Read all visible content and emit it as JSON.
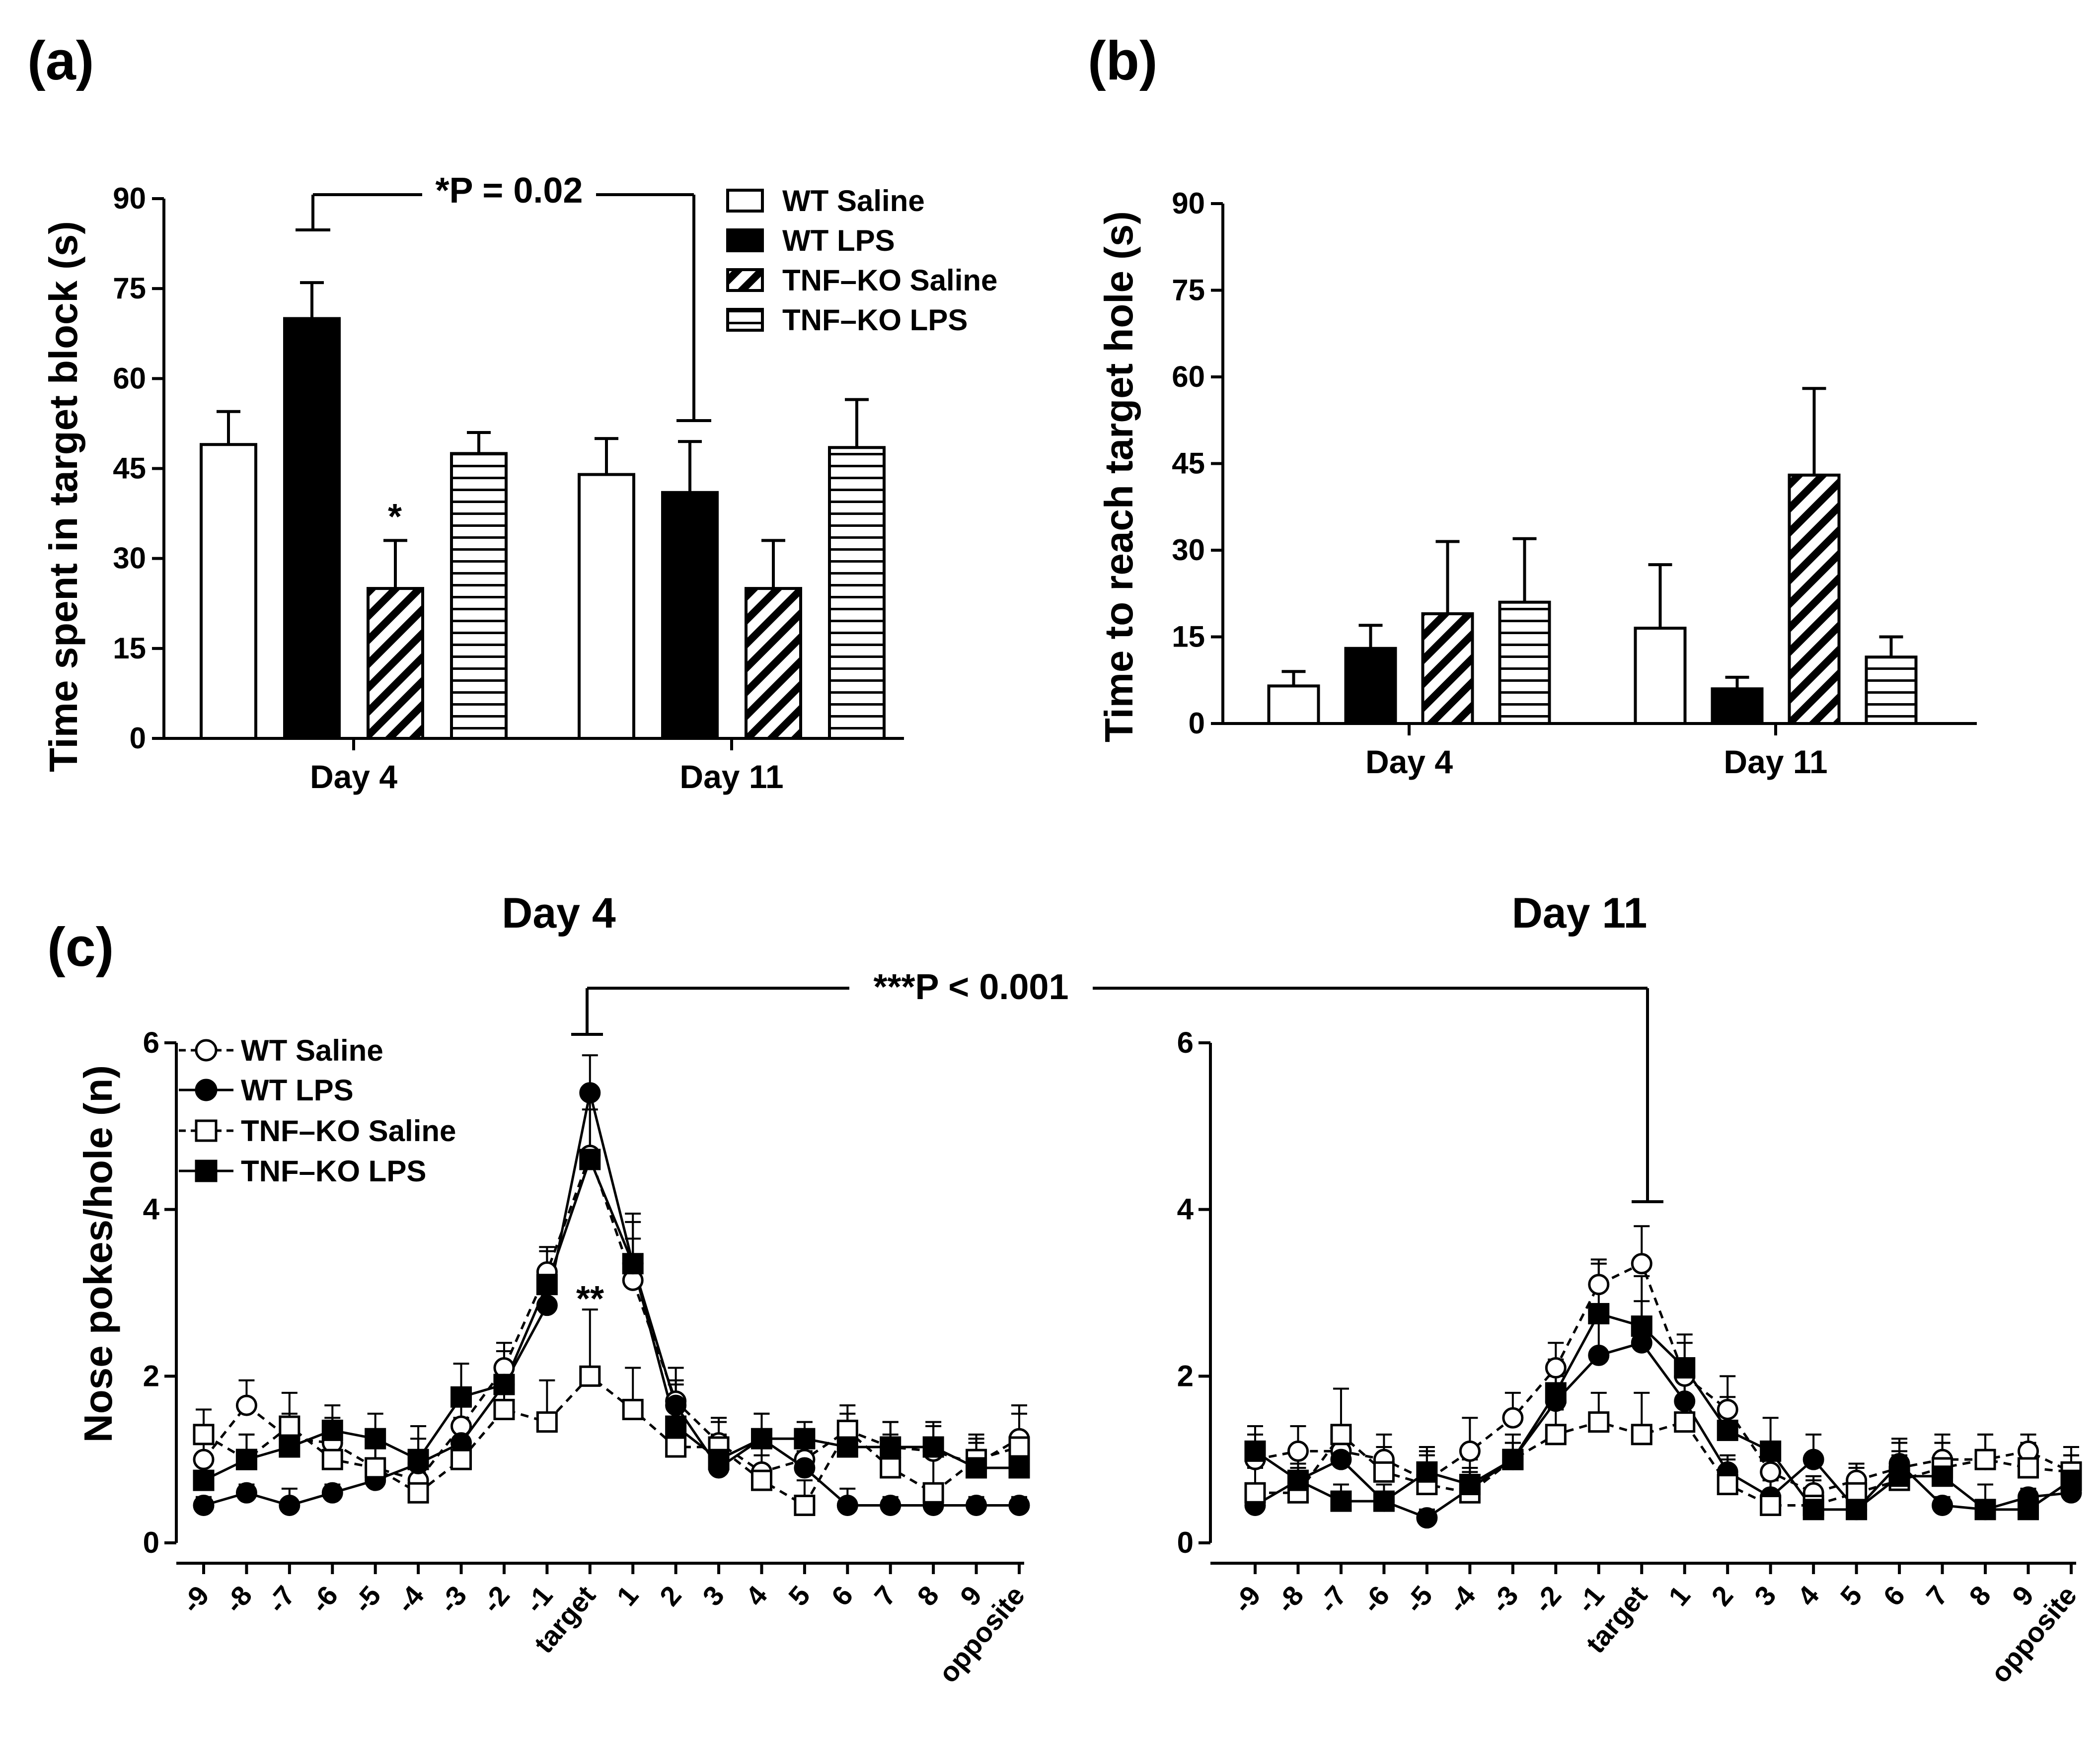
{
  "panels": {
    "a": {
      "label": "(a)",
      "ylabel": "Time spent in target block  (s)",
      "significance_text": "*P = 0.02",
      "star_annotation": "*"
    },
    "b": {
      "label": "(b)",
      "ylabel": "Time to reach target hole (s)"
    },
    "c": {
      "label": "(c)",
      "ylabel": "Nose pokes/hole (n)",
      "day4_title": "Day 4",
      "day11_title": "Day 11",
      "significance_text": "***P < 0.001",
      "star_annotation": "**"
    }
  },
  "legend_bar": [
    "WT Saline",
    "WT LPS",
    "TNF–KO Saline",
    "TNF–KO LPS"
  ],
  "legend_line": [
    "WT Saline",
    "WT LPS",
    "TNF–KO Saline",
    "TNF–KO LPS"
  ],
  "chart_data": [
    {
      "id": "a",
      "type": "bar",
      "title": "",
      "xlabel": "",
      "ylabel": "Time spent in target block  (s)",
      "ylim": [
        0,
        90
      ],
      "yticks": [
        0,
        15,
        30,
        45,
        60,
        75,
        90
      ],
      "categories": [
        "Day 4",
        "Day 11"
      ],
      "series": [
        {
          "name": "WT Saline",
          "values": [
            49,
            44
          ],
          "errors": [
            5.5,
            6
          ]
        },
        {
          "name": "WT LPS",
          "values": [
            70,
            41
          ],
          "errors": [
            6,
            8.5
          ]
        },
        {
          "name": "TNF–KO Saline",
          "values": [
            25,
            25
          ],
          "errors": [
            8,
            8
          ]
        },
        {
          "name": "TNF–KO LPS",
          "values": [
            47.5,
            48.5
          ],
          "errors": [
            3.5,
            8
          ]
        }
      ],
      "annotations": [
        {
          "text": "*P = 0.02",
          "between": [
            "Day 4 WT LPS",
            "Day 11 WT LPS"
          ]
        },
        {
          "text": "*",
          "target": "Day 4 TNF–KO Saline"
        }
      ]
    },
    {
      "id": "b",
      "type": "bar",
      "title": "",
      "xlabel": "",
      "ylabel": "Time to reach target hole (s)",
      "ylim": [
        0,
        90
      ],
      "yticks": [
        0,
        15,
        30,
        45,
        60,
        75,
        90
      ],
      "categories": [
        "Day 4",
        "Day 11"
      ],
      "series": [
        {
          "name": "WT Saline",
          "values": [
            6.5,
            16.5
          ],
          "errors": [
            2.5,
            11
          ]
        },
        {
          "name": "WT LPS",
          "values": [
            13,
            6
          ],
          "errors": [
            4,
            2
          ]
        },
        {
          "name": "TNF–KO Saline",
          "values": [
            19,
            43
          ],
          "errors": [
            12.5,
            15
          ]
        },
        {
          "name": "TNF–KO LPS",
          "values": [
            21,
            11.5
          ],
          "errors": [
            11,
            3.5
          ]
        }
      ]
    },
    {
      "id": "c-day4",
      "type": "line",
      "title": "Day 4",
      "xlabel": "",
      "ylabel": "Nose pokes/hole (n)",
      "ylim": [
        0,
        6
      ],
      "yticks": [
        0,
        2,
        4,
        6
      ],
      "x": [
        "-9",
        "-8",
        "-7",
        "-6",
        "-5",
        "-4",
        "-3",
        "-2",
        "-1",
        "target",
        "1",
        "2",
        "3",
        "4",
        "5",
        "6",
        "7",
        "8",
        "9",
        "opposite"
      ],
      "series": [
        {
          "name": "WT Saline",
          "values": [
            1.0,
            1.65,
            1.25,
            1.2,
            0.9,
            0.75,
            1.4,
            2.1,
            3.25,
            4.65,
            3.15,
            1.7,
            1.2,
            0.85,
            1.0,
            1.35,
            1.15,
            1.1,
            0.95,
            1.25
          ],
          "errors": [
            0.3,
            0.3,
            0.3,
            0.3,
            0.3,
            0.3,
            0.3,
            0.3,
            0.3,
            0.7,
            0.5,
            0.4,
            0.3,
            0.3,
            0.2,
            0.2,
            0.3,
            0.3,
            0.3,
            0.4
          ]
        },
        {
          "name": "WT LPS",
          "values": [
            0.45,
            0.6,
            0.45,
            0.6,
            0.75,
            0.95,
            1.2,
            1.9,
            2.85,
            5.4,
            3.35,
            1.65,
            0.9,
            1.25,
            0.9,
            0.45,
            0.45,
            0.45,
            0.45,
            0.45
          ],
          "errors": [
            0.1,
            0.1,
            0.2,
            0.1,
            0.2,
            0.3,
            0.3,
            0.4,
            0.4,
            0.45,
            0.5,
            0.3,
            0.3,
            0.3,
            0.2,
            0.2,
            0.1,
            0.1,
            0.1,
            0.1
          ]
        },
        {
          "name": "TNF–KO Saline",
          "values": [
            1.3,
            1.0,
            1.4,
            1.0,
            0.9,
            0.6,
            1.0,
            1.6,
            1.45,
            2.0,
            1.6,
            1.15,
            1.15,
            0.75,
            0.45,
            1.35,
            0.9,
            0.6,
            1.0,
            1.15
          ],
          "errors": [
            0.3,
            0.3,
            0.4,
            0.3,
            0.3,
            0.3,
            0.2,
            0.3,
            0.5,
            0.8,
            0.5,
            0.5,
            0.3,
            0.3,
            0.3,
            0.3,
            0.4,
            0.5,
            0.3,
            0.4
          ]
        },
        {
          "name": "TNF–KO LPS",
          "values": [
            0.75,
            1.0,
            1.15,
            1.35,
            1.25,
            1.0,
            1.75,
            1.9,
            3.1,
            4.6,
            3.35,
            1.4,
            1.0,
            1.25,
            1.25,
            1.15,
            1.15,
            1.15,
            0.9,
            0.9
          ],
          "errors": [
            0.3,
            0.3,
            0.3,
            0.3,
            0.3,
            0.4,
            0.4,
            0.4,
            0.4,
            0.6,
            0.6,
            0.5,
            0.3,
            0.3,
            0.2,
            0.3,
            0.3,
            0.3,
            0.3,
            0.3
          ]
        }
      ],
      "annotations": [
        {
          "text": "**",
          "target": "target TNF–KO Saline"
        }
      ]
    },
    {
      "id": "c-day11",
      "type": "line",
      "title": "Day 11",
      "xlabel": "",
      "ylabel": "",
      "ylim": [
        0,
        6
      ],
      "yticks": [
        0,
        2,
        4,
        6
      ],
      "x": [
        "-9",
        "-8",
        "-7",
        "-6",
        "-5",
        "-4",
        "-3",
        "-2",
        "-1",
        "target",
        "1",
        "2",
        "3",
        "4",
        "5",
        "6",
        "7",
        "8",
        "9",
        "opposite"
      ],
      "series": [
        {
          "name": "WT Saline",
          "values": [
            1.0,
            1.1,
            1.1,
            1.0,
            0.75,
            1.1,
            1.5,
            2.1,
            3.1,
            3.35,
            2.0,
            1.6,
            0.85,
            0.6,
            0.75,
            0.9,
            1.0,
            1.0,
            1.1,
            0.85
          ],
          "errors": [
            0.3,
            0.3,
            0.3,
            0.3,
            0.3,
            0.4,
            0.3,
            0.3,
            0.3,
            0.45,
            0.4,
            0.4,
            0.3,
            0.2,
            0.2,
            0.3,
            0.3,
            0.3,
            0.2,
            0.2
          ]
        },
        {
          "name": "WT LPS",
          "values": [
            0.45,
            0.75,
            1.0,
            0.5,
            0.3,
            0.65,
            1.0,
            1.7,
            2.25,
            2.4,
            1.7,
            0.85,
            0.55,
            1.0,
            0.4,
            0.95,
            0.45,
            0.4,
            0.55,
            0.6
          ],
          "errors": [
            0.1,
            0.2,
            0.2,
            0.1,
            0.1,
            0.2,
            0.2,
            0.3,
            0.4,
            0.5,
            0.3,
            0.2,
            0.2,
            0.3,
            0.1,
            0.3,
            0.1,
            0.1,
            0.1,
            0.1
          ]
        },
        {
          "name": "TNF–KO Saline",
          "values": [
            0.6,
            0.6,
            1.3,
            0.85,
            0.7,
            0.6,
            1.0,
            1.3,
            1.45,
            1.3,
            1.45,
            0.7,
            0.45,
            0.45,
            0.6,
            0.75,
            0.9,
            1.0,
            0.9,
            0.85
          ],
          "errors": [
            0.3,
            0.3,
            0.55,
            0.3,
            0.4,
            0.3,
            0.2,
            0.3,
            0.35,
            0.5,
            0.5,
            0.3,
            0.3,
            0.3,
            0.3,
            0.3,
            0.3,
            0.3,
            0.3,
            0.3
          ]
        },
        {
          "name": "TNF–KO LPS",
          "values": [
            1.1,
            0.75,
            0.5,
            0.5,
            0.85,
            0.7,
            1.0,
            1.8,
            2.75,
            2.6,
            2.1,
            1.35,
            1.1,
            0.4,
            0.4,
            0.8,
            0.8,
            0.4,
            0.4,
            0.75
          ],
          "errors": [
            0.3,
            0.3,
            0.2,
            0.2,
            0.3,
            0.3,
            0.3,
            0.4,
            0.6,
            0.6,
            0.4,
            0.4,
            0.4,
            0.2,
            0.2,
            0.3,
            0.4,
            0.3,
            0.2,
            0.3
          ]
        }
      ],
      "annotations": [
        {
          "text": "***P < 0.001",
          "between": [
            "Day 4 target",
            "Day 11 target"
          ]
        }
      ]
    }
  ]
}
